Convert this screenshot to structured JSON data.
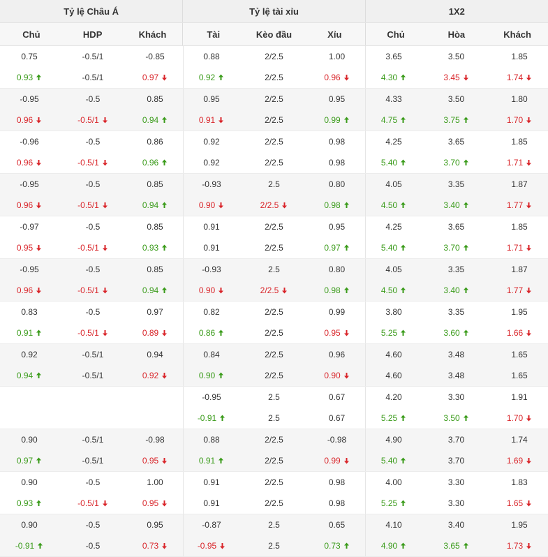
{
  "header": {
    "groups": [
      {
        "label": "Tỷ lệ Châu Á"
      },
      {
        "label": "Tỷ lệ tài xỉu"
      },
      {
        "label": "1X2"
      }
    ],
    "columns": [
      "Chủ",
      "HDP",
      "Khách",
      "Tài",
      "Kèo đầu",
      "Xỉu",
      "Chủ",
      "Hòa",
      "Khách"
    ]
  },
  "colors": {
    "up": "#3a9b1a",
    "down": "#d9252a",
    "text": "#333333",
    "header_bg": "#f0f0f0",
    "alt_row_bg": "#f5f5f5"
  },
  "icons": {
    "up": "arrow-up-icon",
    "down": "arrow-down-icon"
  },
  "rows": [
    {
      "open": [
        [
          "0.75",
          ""
        ],
        [
          "-0.5/1",
          ""
        ],
        [
          "-0.85",
          ""
        ],
        [
          "0.88",
          ""
        ],
        [
          "2/2.5",
          ""
        ],
        [
          "1.00",
          ""
        ],
        [
          "3.65",
          ""
        ],
        [
          "3.50",
          ""
        ],
        [
          "1.85",
          ""
        ]
      ],
      "live": [
        [
          "0.93",
          "up"
        ],
        [
          "-0.5/1",
          ""
        ],
        [
          "0.97",
          "down"
        ],
        [
          "0.92",
          "up"
        ],
        [
          "2/2.5",
          ""
        ],
        [
          "0.96",
          "down"
        ],
        [
          "4.30",
          "up"
        ],
        [
          "3.45",
          "down"
        ],
        [
          "1.74",
          "down"
        ]
      ]
    },
    {
      "open": [
        [
          "-0.95",
          ""
        ],
        [
          "-0.5",
          ""
        ],
        [
          "0.85",
          ""
        ],
        [
          "0.95",
          ""
        ],
        [
          "2/2.5",
          ""
        ],
        [
          "0.95",
          ""
        ],
        [
          "4.33",
          ""
        ],
        [
          "3.50",
          ""
        ],
        [
          "1.80",
          ""
        ]
      ],
      "live": [
        [
          "0.96",
          "down"
        ],
        [
          "-0.5/1",
          "down"
        ],
        [
          "0.94",
          "up"
        ],
        [
          "0.91",
          "down"
        ],
        [
          "2/2.5",
          ""
        ],
        [
          "0.99",
          "up"
        ],
        [
          "4.75",
          "up"
        ],
        [
          "3.75",
          "up"
        ],
        [
          "1.70",
          "down"
        ]
      ]
    },
    {
      "open": [
        [
          "-0.96",
          ""
        ],
        [
          "-0.5",
          ""
        ],
        [
          "0.86",
          ""
        ],
        [
          "0.92",
          ""
        ],
        [
          "2/2.5",
          ""
        ],
        [
          "0.98",
          ""
        ],
        [
          "4.25",
          ""
        ],
        [
          "3.65",
          ""
        ],
        [
          "1.85",
          ""
        ]
      ],
      "live": [
        [
          "0.96",
          "down"
        ],
        [
          "-0.5/1",
          "down"
        ],
        [
          "0.96",
          "up"
        ],
        [
          "0.92",
          ""
        ],
        [
          "2/2.5",
          ""
        ],
        [
          "0.98",
          ""
        ],
        [
          "5.40",
          "up"
        ],
        [
          "3.70",
          "up"
        ],
        [
          "1.71",
          "down"
        ]
      ]
    },
    {
      "open": [
        [
          "-0.95",
          ""
        ],
        [
          "-0.5",
          ""
        ],
        [
          "0.85",
          ""
        ],
        [
          "-0.93",
          ""
        ],
        [
          "2.5",
          ""
        ],
        [
          "0.80",
          ""
        ],
        [
          "4.05",
          ""
        ],
        [
          "3.35",
          ""
        ],
        [
          "1.87",
          ""
        ]
      ],
      "live": [
        [
          "0.96",
          "down"
        ],
        [
          "-0.5/1",
          "down"
        ],
        [
          "0.94",
          "up"
        ],
        [
          "0.90",
          "down"
        ],
        [
          "2/2.5",
          "down"
        ],
        [
          "0.98",
          "up"
        ],
        [
          "4.50",
          "up"
        ],
        [
          "3.40",
          "up"
        ],
        [
          "1.77",
          "down"
        ]
      ]
    },
    {
      "open": [
        [
          "-0.97",
          ""
        ],
        [
          "-0.5",
          ""
        ],
        [
          "0.85",
          ""
        ],
        [
          "0.91",
          ""
        ],
        [
          "2/2.5",
          ""
        ],
        [
          "0.95",
          ""
        ],
        [
          "4.25",
          ""
        ],
        [
          "3.65",
          ""
        ],
        [
          "1.85",
          ""
        ]
      ],
      "live": [
        [
          "0.95",
          "down"
        ],
        [
          "-0.5/1",
          "down"
        ],
        [
          "0.93",
          "up"
        ],
        [
          "0.91",
          ""
        ],
        [
          "2/2.5",
          ""
        ],
        [
          "0.97",
          "up"
        ],
        [
          "5.40",
          "up"
        ],
        [
          "3.70",
          "up"
        ],
        [
          "1.71",
          "down"
        ]
      ]
    },
    {
      "open": [
        [
          "-0.95",
          ""
        ],
        [
          "-0.5",
          ""
        ],
        [
          "0.85",
          ""
        ],
        [
          "-0.93",
          ""
        ],
        [
          "2.5",
          ""
        ],
        [
          "0.80",
          ""
        ],
        [
          "4.05",
          ""
        ],
        [
          "3.35",
          ""
        ],
        [
          "1.87",
          ""
        ]
      ],
      "live": [
        [
          "0.96",
          "down"
        ],
        [
          "-0.5/1",
          "down"
        ],
        [
          "0.94",
          "up"
        ],
        [
          "0.90",
          "down"
        ],
        [
          "2/2.5",
          "down"
        ],
        [
          "0.98",
          "up"
        ],
        [
          "4.50",
          "up"
        ],
        [
          "3.40",
          "up"
        ],
        [
          "1.77",
          "down"
        ]
      ]
    },
    {
      "open": [
        [
          "0.83",
          ""
        ],
        [
          "-0.5",
          ""
        ],
        [
          "0.97",
          ""
        ],
        [
          "0.82",
          ""
        ],
        [
          "2/2.5",
          ""
        ],
        [
          "0.99",
          ""
        ],
        [
          "3.80",
          ""
        ],
        [
          "3.35",
          ""
        ],
        [
          "1.95",
          ""
        ]
      ],
      "live": [
        [
          "0.91",
          "up"
        ],
        [
          "-0.5/1",
          "down"
        ],
        [
          "0.89",
          "down"
        ],
        [
          "0.86",
          "up"
        ],
        [
          "2/2.5",
          ""
        ],
        [
          "0.95",
          "down"
        ],
        [
          "5.25",
          "up"
        ],
        [
          "3.60",
          "up"
        ],
        [
          "1.66",
          "down"
        ]
      ]
    },
    {
      "open": [
        [
          "0.92",
          ""
        ],
        [
          "-0.5/1",
          ""
        ],
        [
          "0.94",
          ""
        ],
        [
          "0.84",
          ""
        ],
        [
          "2/2.5",
          ""
        ],
        [
          "0.96",
          ""
        ],
        [
          "4.60",
          ""
        ],
        [
          "3.48",
          ""
        ],
        [
          "1.65",
          ""
        ]
      ],
      "live": [
        [
          "0.94",
          "up"
        ],
        [
          "-0.5/1",
          ""
        ],
        [
          "0.92",
          "down"
        ],
        [
          "0.90",
          "up"
        ],
        [
          "2/2.5",
          ""
        ],
        [
          "0.90",
          "down"
        ],
        [
          "4.60",
          ""
        ],
        [
          "3.48",
          ""
        ],
        [
          "1.65",
          ""
        ]
      ]
    },
    {
      "open": [
        [
          "",
          ""
        ],
        [
          "",
          ""
        ],
        [
          "",
          ""
        ],
        [
          "-0.95",
          ""
        ],
        [
          "2.5",
          ""
        ],
        [
          "0.67",
          ""
        ],
        [
          "4.20",
          ""
        ],
        [
          "3.30",
          ""
        ],
        [
          "1.91",
          ""
        ]
      ],
      "live": [
        [
          "",
          ""
        ],
        [
          "",
          ""
        ],
        [
          "",
          ""
        ],
        [
          "-0.91",
          "up"
        ],
        [
          "2.5",
          ""
        ],
        [
          "0.67",
          ""
        ],
        [
          "5.25",
          "up"
        ],
        [
          "3.50",
          "up"
        ],
        [
          "1.70",
          "down"
        ]
      ]
    },
    {
      "open": [
        [
          "0.90",
          ""
        ],
        [
          "-0.5/1",
          ""
        ],
        [
          "-0.98",
          ""
        ],
        [
          "0.88",
          ""
        ],
        [
          "2/2.5",
          ""
        ],
        [
          "-0.98",
          ""
        ],
        [
          "4.90",
          ""
        ],
        [
          "3.70",
          ""
        ],
        [
          "1.74",
          ""
        ]
      ],
      "live": [
        [
          "0.97",
          "up"
        ],
        [
          "-0.5/1",
          ""
        ],
        [
          "0.95",
          "down"
        ],
        [
          "0.91",
          "up"
        ],
        [
          "2/2.5",
          ""
        ],
        [
          "0.99",
          "down"
        ],
        [
          "5.40",
          "up"
        ],
        [
          "3.70",
          ""
        ],
        [
          "1.69",
          "down"
        ]
      ]
    },
    {
      "open": [
        [
          "0.90",
          ""
        ],
        [
          "-0.5",
          ""
        ],
        [
          "1.00",
          ""
        ],
        [
          "0.91",
          ""
        ],
        [
          "2/2.5",
          ""
        ],
        [
          "0.98",
          ""
        ],
        [
          "4.00",
          ""
        ],
        [
          "3.30",
          ""
        ],
        [
          "1.83",
          ""
        ]
      ],
      "live": [
        [
          "0.93",
          "up"
        ],
        [
          "-0.5/1",
          "down"
        ],
        [
          "0.95",
          "down"
        ],
        [
          "0.91",
          ""
        ],
        [
          "2/2.5",
          ""
        ],
        [
          "0.98",
          ""
        ],
        [
          "5.25",
          "up"
        ],
        [
          "3.30",
          ""
        ],
        [
          "1.65",
          "down"
        ]
      ]
    },
    {
      "open": [
        [
          "0.90",
          ""
        ],
        [
          "-0.5",
          ""
        ],
        [
          "0.95",
          ""
        ],
        [
          "-0.87",
          ""
        ],
        [
          "2.5",
          ""
        ],
        [
          "0.65",
          ""
        ],
        [
          "4.10",
          ""
        ],
        [
          "3.40",
          ""
        ],
        [
          "1.95",
          ""
        ]
      ],
      "live": [
        [
          "-0.91",
          "up"
        ],
        [
          "-0.5",
          ""
        ],
        [
          "0.73",
          "down"
        ],
        [
          "-0.95",
          "down"
        ],
        [
          "2.5",
          ""
        ],
        [
          "0.73",
          "up"
        ],
        [
          "4.90",
          "up"
        ],
        [
          "3.65",
          "up"
        ],
        [
          "1.73",
          "down"
        ]
      ]
    }
  ]
}
